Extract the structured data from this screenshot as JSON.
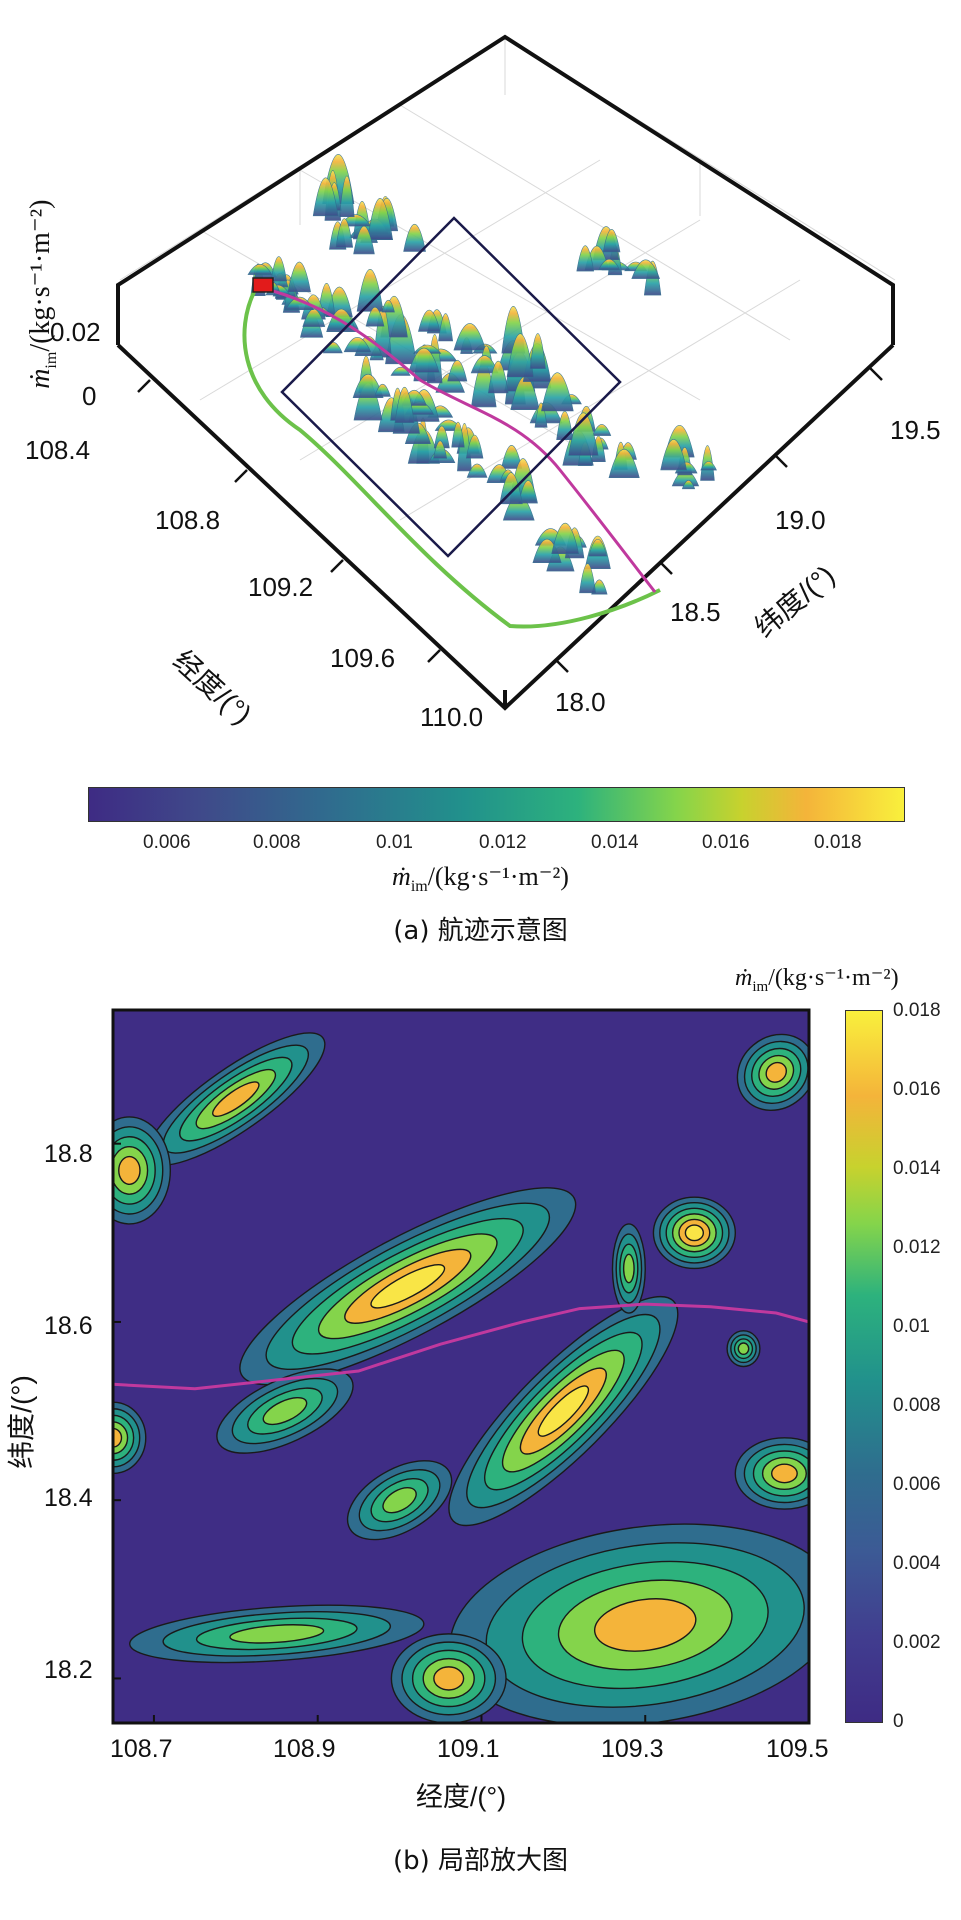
{
  "colors": {
    "viridis": [
      "#3e2b84",
      "#3f4a8a",
      "#2f6d8e",
      "#21918c",
      "#2db27d",
      "#84d44b",
      "#c7d22e",
      "#f4b43a",
      "#f9de3c"
    ],
    "track_magenta": "#c0399e",
    "track_green": "#6cc24a",
    "start_marker": "#e21b1b",
    "background_low": "#3f2d85"
  },
  "chart_data": [
    {
      "type": "surface3d",
      "panel": "a",
      "caption": "(a) 航迹示意图",
      "zlabel_main": "ṁ",
      "zlabel_sub": "im",
      "zlabel_unit": "/(kg·s⁻¹·m⁻²)",
      "z_ticks": [
        "0.02",
        "0"
      ],
      "xlabel": "经度/(°)",
      "x_ticks": [
        "108.4",
        "108.8",
        "109.2",
        "109.6",
        "110.0"
      ],
      "ylabel": "纬度/(°)",
      "y_ticks": [
        "18.0",
        "18.5",
        "19.0",
        "19.5"
      ],
      "colorbar": {
        "label_main": "ṁ",
        "label_sub": "im",
        "label_unit": "/(kg·s⁻¹·m⁻²)",
        "ticks": [
          "0.006",
          "0.008",
          "0.01",
          "0.012",
          "0.014",
          "0.016",
          "0.018"
        ],
        "range": [
          0.0045,
          0.019
        ]
      }
    },
    {
      "type": "heatmap",
      "panel": "b",
      "caption": "(b) 局部放大图",
      "xlabel": "经度/(°)",
      "ylabel": "纬度/(°)",
      "x_ticks": [
        "108.7",
        "108.9",
        "109.1",
        "109.3",
        "109.5"
      ],
      "y_ticks": [
        "18.8",
        "18.6",
        "18.4",
        "18.2"
      ],
      "xlim": [
        108.65,
        109.5
      ],
      "ylim": [
        18.15,
        18.95
      ],
      "colorbar": {
        "label_main": "ṁ",
        "label_sub": "im",
        "label_unit": "/(kg·s⁻¹·m⁻²)",
        "ticks": [
          "0.018",
          "0.016",
          "0.014",
          "0.012",
          "0.01",
          "0.008",
          "0.006",
          "0.004",
          "0.002",
          "0"
        ],
        "range": [
          0,
          0.018
        ]
      },
      "blobs": [
        {
          "lon": 108.8,
          "lat": 18.85,
          "rx": 0.13,
          "ry": 0.035,
          "rot": -35,
          "peak": 0.016
        },
        {
          "lon": 108.67,
          "lat": 18.77,
          "rx": 0.05,
          "ry": 0.06,
          "rot": 0,
          "peak": 0.015
        },
        {
          "lon": 109.01,
          "lat": 18.64,
          "rx": 0.23,
          "ry": 0.055,
          "rot": -28,
          "peak": 0.018
        },
        {
          "lon": 108.86,
          "lat": 18.5,
          "rx": 0.09,
          "ry": 0.035,
          "rot": -25,
          "peak": 0.012
        },
        {
          "lon": 109.2,
          "lat": 18.5,
          "rx": 0.19,
          "ry": 0.05,
          "rot": -45,
          "peak": 0.017
        },
        {
          "lon": 109.36,
          "lat": 18.7,
          "rx": 0.05,
          "ry": 0.04,
          "rot": 0,
          "peak": 0.018
        },
        {
          "lon": 109.28,
          "lat": 18.66,
          "rx": 0.02,
          "ry": 0.05,
          "rot": 0,
          "peak": 0.013
        },
        {
          "lon": 109.46,
          "lat": 18.88,
          "rx": 0.05,
          "ry": 0.04,
          "rot": -40,
          "peak": 0.016
        },
        {
          "lon": 109.47,
          "lat": 18.43,
          "rx": 0.06,
          "ry": 0.04,
          "rot": 0,
          "peak": 0.015
        },
        {
          "lon": 109.42,
          "lat": 18.57,
          "rx": 0.02,
          "ry": 0.02,
          "rot": 0,
          "peak": 0.011
        },
        {
          "lon": 109.3,
          "lat": 18.26,
          "rx": 0.24,
          "ry": 0.11,
          "rot": -8,
          "peak": 0.016
        },
        {
          "lon": 108.85,
          "lat": 18.25,
          "rx": 0.18,
          "ry": 0.03,
          "rot": -4,
          "peak": 0.011
        },
        {
          "lon": 109.06,
          "lat": 18.2,
          "rx": 0.07,
          "ry": 0.05,
          "rot": 0,
          "peak": 0.014
        },
        {
          "lon": 108.65,
          "lat": 18.47,
          "rx": 0.04,
          "ry": 0.04,
          "rot": 0,
          "peak": 0.015
        },
        {
          "lon": 109.0,
          "lat": 18.4,
          "rx": 0.07,
          "ry": 0.035,
          "rot": -30,
          "peak": 0.011
        }
      ],
      "track": {
        "lon": [
          108.65,
          108.75,
          108.85,
          108.95,
          109.05,
          109.15,
          109.22,
          109.3,
          109.38,
          109.46,
          109.5
        ],
        "lat": [
          18.53,
          18.525,
          18.535,
          18.545,
          18.575,
          18.6,
          18.615,
          18.62,
          18.617,
          18.61,
          18.6
        ]
      }
    }
  ]
}
